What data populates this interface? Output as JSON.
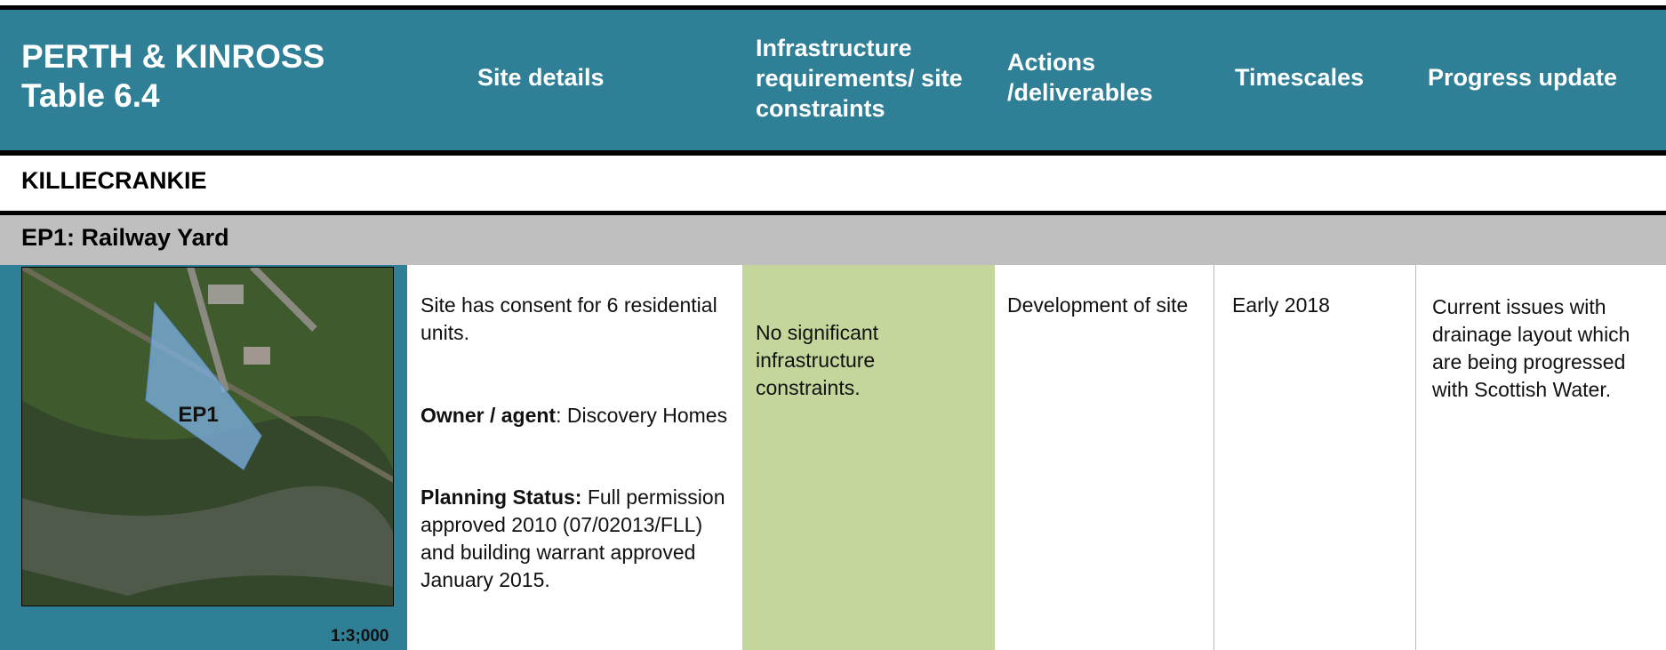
{
  "header": {
    "title": [
      "PERTH & KINROSS",
      "Table 6.4"
    ],
    "columns": [
      "Site details",
      "Infrastructure requirements/ site constraints",
      "Actions /deliverables",
      "Timescales",
      "Progress update"
    ]
  },
  "section": "KILLIECRANKIE",
  "site": {
    "name": "EP1: Railway Yard",
    "map_label": "EP1",
    "scale": "1:3;000",
    "details": {
      "consent": "Site has consent for 6 residential units.",
      "owner_label": "Owner / agent",
      "owner": ": Discovery Homes",
      "planning_label": "Planning Status:",
      "planning": " Full permission approved 2010 (07/02013/FLL) and building warrant approved January 2015."
    },
    "infrastructure": "No significant infrastructure constraints.",
    "actions": "Development of site",
    "timescales": "Early 2018",
    "progress": "Current issues with drainage layout which are being progressed with Scottish Water."
  }
}
